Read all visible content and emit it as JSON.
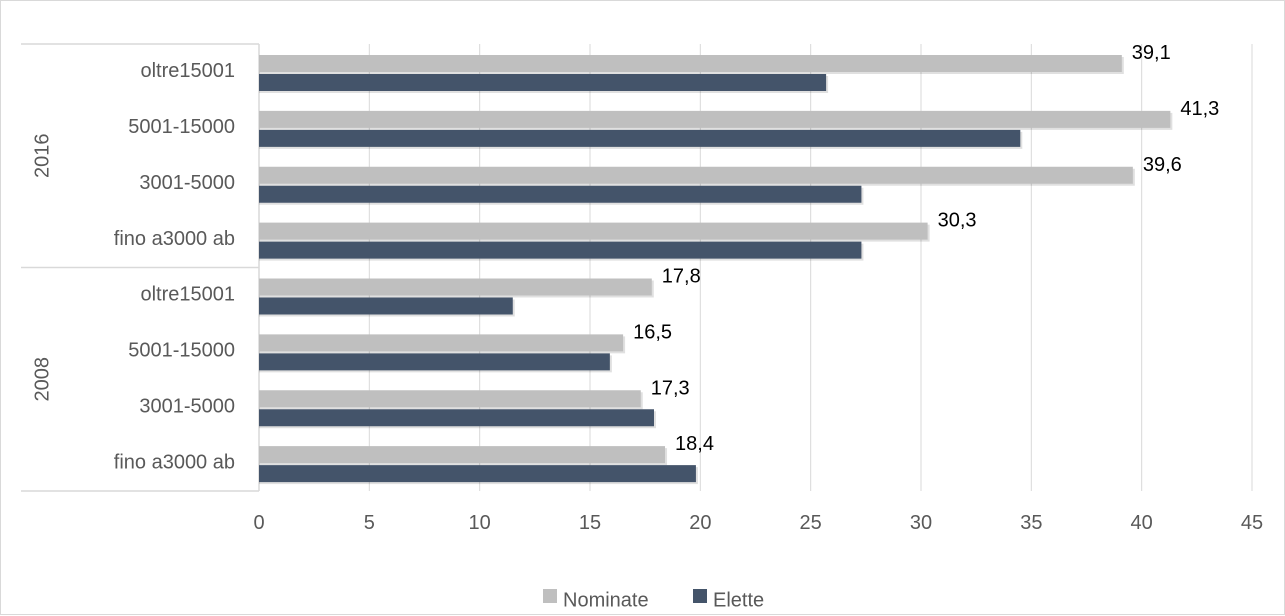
{
  "chart_data": {
    "type": "bar",
    "orientation": "horizontal",
    "groups": [
      {
        "label": "2016",
        "categories": [
          "oltre15001",
          "5001-15000",
          "3001-5000",
          "fino a3000 ab"
        ]
      },
      {
        "label": "2008",
        "categories": [
          "oltre15001",
          "5001-15000",
          "3001-5000",
          "fino a3000 ab"
        ]
      }
    ],
    "series": [
      {
        "name": "Nominate",
        "color": "#bfbfbf",
        "values": [
          39.1,
          41.3,
          39.6,
          30.3,
          17.8,
          16.5,
          17.3,
          18.4
        ],
        "labels": [
          "39,1",
          "41,3",
          "39,6",
          "30,3",
          "17,8",
          "16,5",
          "17,3",
          "18,4"
        ]
      },
      {
        "name": "Elette",
        "color": "#44546a",
        "values": [
          25.7,
          34.5,
          27.3,
          27.3,
          11.5,
          15.9,
          17.9,
          19.8
        ]
      }
    ],
    "xlim": [
      0,
      45
    ],
    "xticks": [
      0,
      5,
      10,
      15,
      20,
      25,
      30,
      35,
      40,
      45
    ],
    "xlabel": "",
    "ylabel": "",
    "title": "",
    "legend_position": "bottom",
    "grid": true
  }
}
